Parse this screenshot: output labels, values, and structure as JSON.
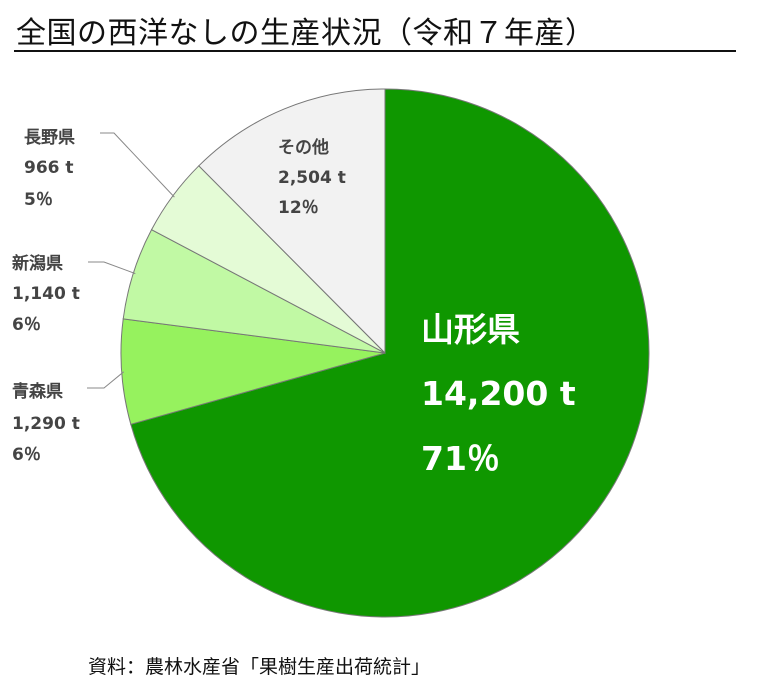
{
  "title": "全国の西洋なしの生産状況（令和７年産）",
  "source": "資料：農林水産省「果樹生産出荷統計」",
  "chart_data": {
    "type": "pie",
    "title": "全国の西洋なしの生産状況（令和７年産）",
    "start": "12 o'clock",
    "direction": "clockwise",
    "slices": [
      {
        "name": "山形県",
        "value": 14200,
        "value_label": "14,200 t",
        "percent": 71,
        "percent_label": "71％",
        "color": "#0f9700"
      },
      {
        "name": "青森県",
        "value": 1290,
        "value_label": "1,290 t",
        "percent": 6,
        "percent_label": "6％",
        "color": "#96f25e"
      },
      {
        "name": "新潟県",
        "value": 1140,
        "value_label": "1,140 t",
        "percent": 6,
        "percent_label": "6％",
        "color": "#c1f9a4"
      },
      {
        "name": "長野県",
        "value": 966,
        "value_label": "966 t",
        "percent": 5,
        "percent_label": "5％",
        "color": "#e4fbd6"
      },
      {
        "name": "その他",
        "value": 2504,
        "value_label": "2,504 t",
        "percent": 12,
        "percent_label": "12％",
        "color": "#f2f2f2"
      }
    ]
  }
}
